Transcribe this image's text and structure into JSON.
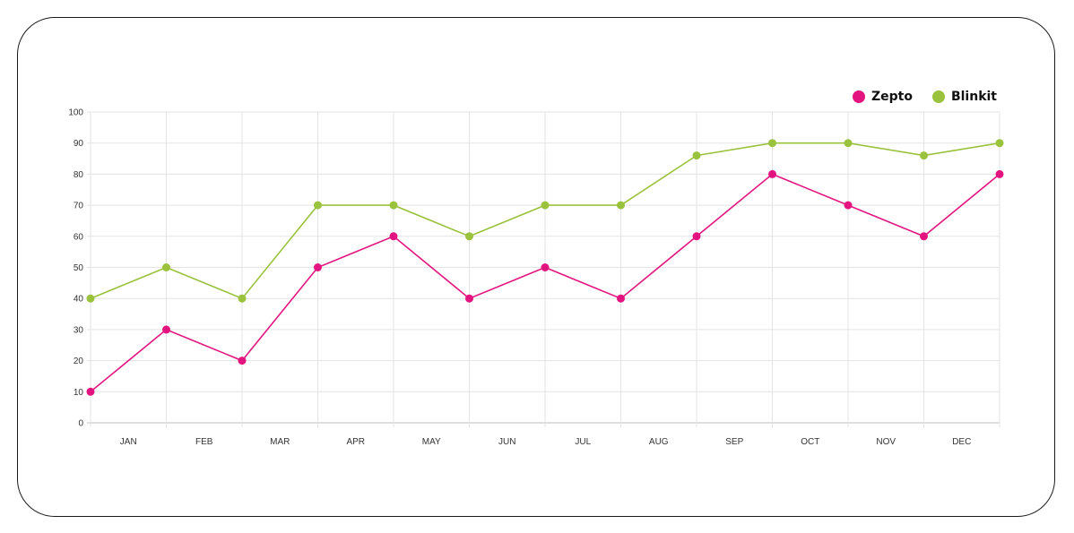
{
  "chart_data": {
    "type": "line",
    "categories": [
      "JAN",
      "FEB",
      "MAR",
      "APR",
      "MAY",
      "JUN",
      "JUL",
      "AUG",
      "SEP",
      "OCT",
      "NOV",
      "DEC"
    ],
    "x": [
      0,
      1,
      2,
      3,
      4,
      5,
      6,
      7,
      8,
      9,
      10,
      11,
      12
    ],
    "series": [
      {
        "name": "Zepto",
        "color": "#e3147f",
        "values": [
          10,
          30,
          20,
          50,
          60,
          40,
          50,
          40,
          60,
          80,
          70,
          60,
          80
        ]
      },
      {
        "name": "Blinkit",
        "color": "#9ac23c",
        "values": [
          40,
          50,
          40,
          70,
          70,
          60,
          70,
          70,
          86,
          90,
          90,
          86,
          90
        ]
      }
    ],
    "ylim": [
      0,
      100
    ],
    "yticks": [
      "0",
      "10",
      "20",
      "30",
      "40",
      "50",
      "60",
      "70",
      "80",
      "90",
      "100"
    ],
    "grid": true,
    "legend_position": "top-right",
    "title": "",
    "xlabel": "",
    "ylabel": ""
  }
}
